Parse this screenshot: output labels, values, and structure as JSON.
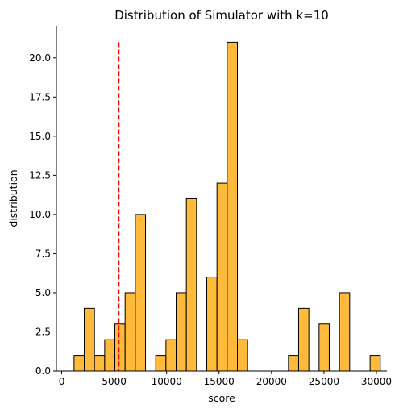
{
  "chart_data": {
    "type": "bar",
    "title": "Distribution of Simulator with k=10",
    "xlabel": "score",
    "ylabel": "distribution",
    "xlim": [
      -500,
      31000
    ],
    "ylim": [
      0,
      22.05
    ],
    "xticks": [
      0,
      5000,
      10000,
      15000,
      20000,
      25000,
      30000
    ],
    "yticks": [
      0.0,
      2.5,
      5.0,
      7.5,
      10.0,
      12.5,
      15.0,
      17.5,
      20.0
    ],
    "xtick_labels": [
      "0",
      "5000",
      "10000",
      "15000",
      "20000",
      "25000",
      "30000"
    ],
    "ytick_labels": [
      "0.0",
      "2.5",
      "5.0",
      "7.5",
      "10.0",
      "12.5",
      "15.0",
      "17.5",
      "20.0"
    ],
    "bin_start": 1180,
    "bin_width": 973,
    "counts": [
      1,
      4,
      1,
      2,
      3,
      5,
      10,
      0,
      1,
      2,
      5,
      11,
      0,
      6,
      12,
      21,
      2,
      0,
      0,
      0,
      0,
      1,
      4,
      0,
      3,
      0,
      5,
      0,
      0,
      1
    ],
    "bar_color": "#ffb93b",
    "edge_color": "#000000",
    "reference_line": {
      "x": 5450,
      "color": "#ff0000",
      "style": "dashed"
    },
    "grid": false,
    "legend": "none"
  }
}
